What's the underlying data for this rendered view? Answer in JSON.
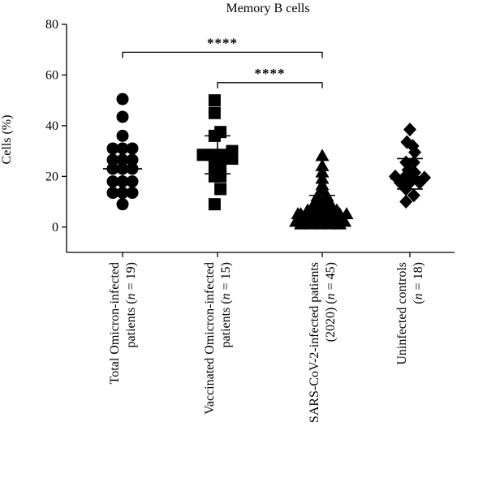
{
  "chart_data": {
    "type": "scatter",
    "title": "Memory B cells",
    "ylabel": "Cells (%)",
    "xlabel": "",
    "ylim": [
      -10,
      80
    ],
    "yticks": [
      0,
      20,
      40,
      60,
      80
    ],
    "grid": false,
    "legend": "none",
    "categories": [
      {
        "line1": "Total Omicron-infected",
        "line2_pre": "patients (",
        "n_label": "n",
        "line2_post": " = 19)"
      },
      {
        "line1": "Vaccinated Omicron-infected",
        "line2_pre": "patients (",
        "n_label": "n",
        "line2_post": " = 15)"
      },
      {
        "line1": "SARS-CoV-2-infected patients",
        "line2_pre": "(2020) (",
        "n_label": "n",
        "line2_post": " = 45)"
      },
      {
        "line1": "Uninfected controls",
        "line2_pre": "(",
        "n_label": "n",
        "line2_post": " = 18)"
      }
    ],
    "series": [
      {
        "marker": "circle",
        "median": 23,
        "lower": 18,
        "upper": 30.5,
        "points": [
          [
            0,
            50.5
          ],
          [
            0,
            43.5
          ],
          [
            0,
            36
          ],
          [
            -1,
            31
          ],
          [
            0,
            31
          ],
          [
            1,
            31
          ],
          [
            -1,
            26.5
          ],
          [
            0,
            26.5
          ],
          [
            1,
            26.5
          ],
          [
            -1,
            23
          ],
          [
            0,
            23
          ],
          [
            1,
            23
          ],
          [
            -1,
            18
          ],
          [
            0,
            18
          ],
          [
            1,
            18
          ],
          [
            -1,
            13.5
          ],
          [
            0,
            13.5
          ],
          [
            1,
            13.5
          ],
          [
            0,
            9
          ]
        ]
      },
      {
        "marker": "square",
        "median": 28.5,
        "lower": 21,
        "upper": 36,
        "points": [
          [
            -0.3,
            50
          ],
          [
            -0.3,
            45
          ],
          [
            0.3,
            37.5
          ],
          [
            -0.3,
            36
          ],
          [
            -1.5,
            28.5
          ],
          [
            -0.5,
            28.5
          ],
          [
            0.5,
            28.5
          ],
          [
            1.5,
            30
          ],
          [
            1.5,
            27
          ],
          [
            -0.3,
            24
          ],
          [
            0.3,
            24
          ],
          [
            -0.3,
            20
          ],
          [
            0.3,
            20
          ],
          [
            0.3,
            15
          ],
          [
            -0.3,
            9
          ]
        ]
      },
      {
        "marker": "triangle",
        "median": 5,
        "lower": 4,
        "upper": 12.5,
        "points": [
          [
            0,
            28
          ],
          [
            0,
            24
          ],
          [
            0,
            21.5
          ],
          [
            0,
            19
          ],
          [
            0,
            16.5
          ],
          [
            0,
            14.5
          ],
          [
            -0.5,
            12
          ],
          [
            0.5,
            12
          ],
          [
            -0.5,
            10
          ],
          [
            0.5,
            10
          ],
          [
            -1,
            8
          ],
          [
            0,
            8
          ],
          [
            1,
            8
          ],
          [
            -1.5,
            6.5
          ],
          [
            -0.5,
            6.5
          ],
          [
            0.5,
            6.5
          ],
          [
            1.5,
            6.5
          ],
          [
            -2.2,
            5
          ],
          [
            -1.2,
            5
          ],
          [
            -0.2,
            5
          ],
          [
            0.8,
            5
          ],
          [
            1.8,
            5
          ],
          [
            -2.2,
            3.5
          ],
          [
            -1.2,
            3.5
          ],
          [
            -0.2,
            3.5
          ],
          [
            0.8,
            3.5
          ],
          [
            1.8,
            3.5
          ],
          [
            -2.7,
            2
          ],
          [
            -1.7,
            2
          ],
          [
            -0.7,
            2
          ],
          [
            0.3,
            2
          ],
          [
            1.3,
            2
          ],
          [
            2.3,
            2
          ],
          [
            -2.2,
            1
          ],
          [
            -1.2,
            1
          ],
          [
            -0.2,
            1
          ],
          [
            0.8,
            1
          ],
          [
            1.8,
            1
          ],
          [
            -1.5,
            4
          ],
          [
            1.5,
            4
          ],
          [
            2.5,
            5
          ],
          [
            -2.5,
            5
          ],
          [
            0,
            3
          ],
          [
            0,
            6
          ],
          [
            0,
            9
          ]
        ]
      },
      {
        "marker": "diamond",
        "median": 19,
        "lower": 15,
        "upper": 27,
        "points": [
          [
            0,
            38.5
          ],
          [
            -0.3,
            33.5
          ],
          [
            0.3,
            32
          ],
          [
            0.5,
            29.5
          ],
          [
            -0.4,
            25.5
          ],
          [
            0.4,
            25.5
          ],
          [
            -0.2,
            22.5
          ],
          [
            0.5,
            21.5
          ],
          [
            -1.5,
            20
          ],
          [
            -0.6,
            19.5
          ],
          [
            0.4,
            19.5
          ],
          [
            1.5,
            19.5
          ],
          [
            -1,
            17.5
          ],
          [
            0,
            17.5
          ],
          [
            1,
            17.5
          ],
          [
            -0.4,
            15
          ],
          [
            0.4,
            12.5
          ],
          [
            -0.4,
            10
          ]
        ]
      }
    ],
    "significance": [
      {
        "from": 0,
        "to": 2,
        "y": 69,
        "label": "****"
      },
      {
        "from": 1,
        "to": 2,
        "y": 57,
        "label": "****"
      }
    ]
  }
}
